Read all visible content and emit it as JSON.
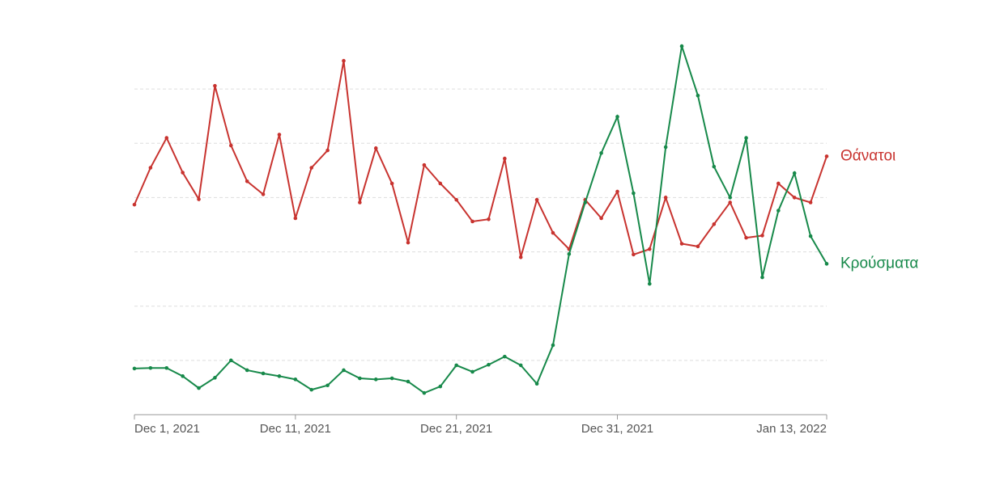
{
  "chart_data": {
    "type": "line",
    "x": [
      "2021-12-01",
      "2021-12-02",
      "2021-12-03",
      "2021-12-04",
      "2021-12-05",
      "2021-12-06",
      "2021-12-07",
      "2021-12-08",
      "2021-12-09",
      "2021-12-10",
      "2021-12-11",
      "2021-12-12",
      "2021-12-13",
      "2021-12-14",
      "2021-12-15",
      "2021-12-16",
      "2021-12-17",
      "2021-12-18",
      "2021-12-19",
      "2021-12-20",
      "2021-12-21",
      "2021-12-22",
      "2021-12-23",
      "2021-12-24",
      "2021-12-25",
      "2021-12-26",
      "2021-12-27",
      "2021-12-28",
      "2021-12-29",
      "2021-12-30",
      "2021-12-31",
      "2022-01-01",
      "2022-01-02",
      "2022-01-03",
      "2022-01-04",
      "2022-01-05",
      "2022-01-06",
      "2022-01-07",
      "2022-01-08",
      "2022-01-09",
      "2022-01-10",
      "2022-01-11",
      "2022-01-12",
      "2022-01-13"
    ],
    "series": [
      {
        "name": "Θάνατοι",
        "color": "#c8332f",
        "values": [
          3.87,
          4.55,
          5.1,
          4.46,
          3.97,
          6.06,
          4.96,
          4.3,
          4.06,
          5.16,
          3.62,
          4.55,
          4.87,
          6.52,
          3.91,
          4.91,
          4.26,
          3.17,
          4.6,
          4.26,
          3.96,
          3.56,
          3.6,
          4.72,
          2.9,
          3.96,
          3.35,
          3.05,
          3.96,
          3.62,
          4.11,
          2.95,
          3.05,
          4.0,
          3.15,
          3.1,
          3.51,
          3.91,
          3.26,
          3.3,
          4.26,
          4.0,
          3.91,
          4.76
        ]
      },
      {
        "name": "Κρούσματα",
        "color": "#17894a",
        "values": [
          0.85,
          0.86,
          0.86,
          0.71,
          0.49,
          0.68,
          1.0,
          0.82,
          0.76,
          0.71,
          0.65,
          0.46,
          0.54,
          0.82,
          0.67,
          0.65,
          0.67,
          0.61,
          0.4,
          0.52,
          0.91,
          0.79,
          0.92,
          1.07,
          0.91,
          0.57,
          1.28,
          2.96,
          3.91,
          4.82,
          5.49,
          4.08,
          2.41,
          4.93,
          6.79,
          5.88,
          4.57,
          4.0,
          5.1,
          2.53,
          3.76,
          4.45,
          3.29,
          2.78
        ]
      }
    ],
    "xlim": [
      "2021-12-01",
      "2022-01-13"
    ],
    "xticks": [
      {
        "value": "2021-12-01",
        "label": "Dec 1, 2021"
      },
      {
        "value": "2021-12-11",
        "label": "Dec 11, 2021"
      },
      {
        "value": "2021-12-21",
        "label": "Dec 21, 2021"
      },
      {
        "value": "2021-12-31",
        "label": "Dec 31, 2021"
      },
      {
        "value": "2022-01-13",
        "label": "Jan 13, 2022"
      }
    ],
    "ylim": [
      0,
      7
    ],
    "yticks": [
      1,
      2,
      3,
      4,
      5,
      6
    ],
    "grid": true
  }
}
